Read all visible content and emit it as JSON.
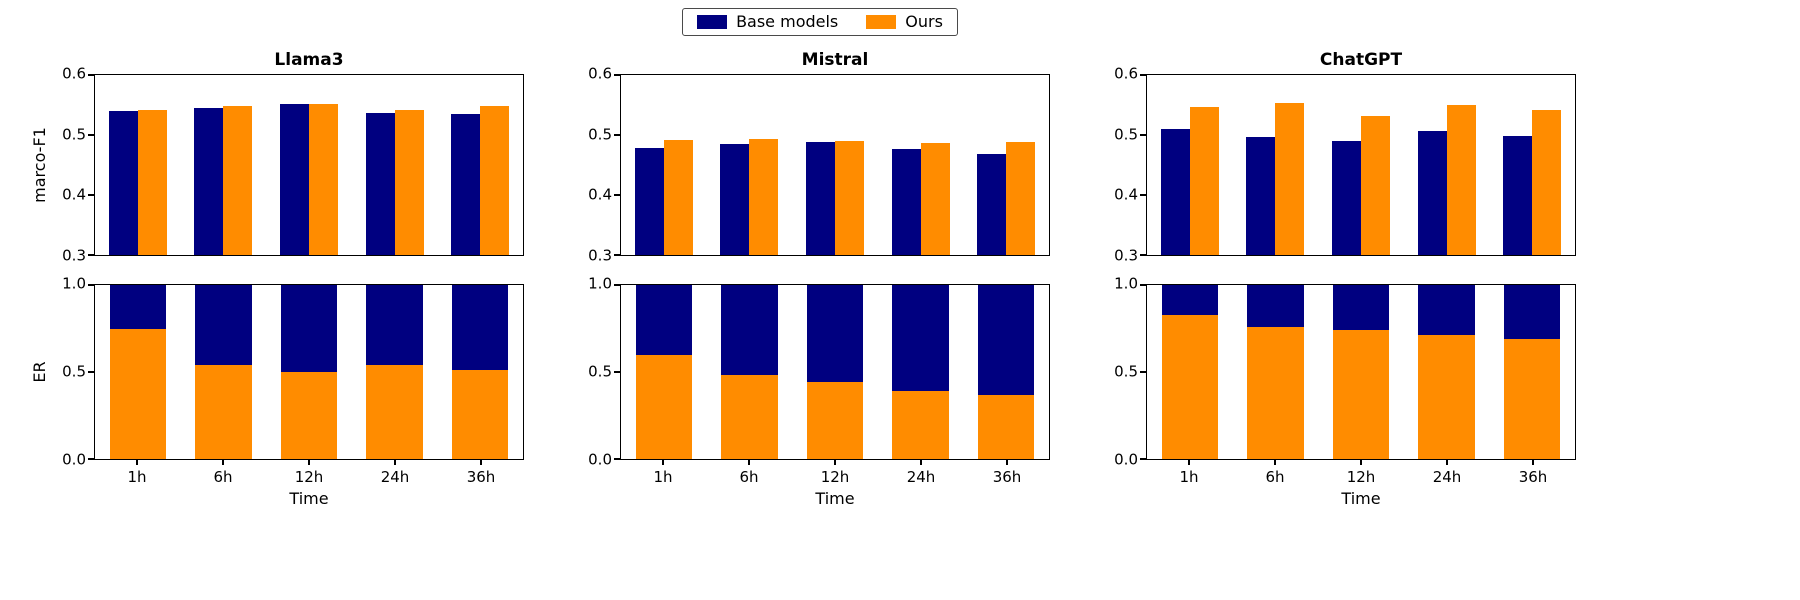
{
  "figure": {
    "background": "#ffffff",
    "legend": {
      "items": [
        {
          "label": "Base models",
          "color": "#000080"
        },
        {
          "label": "Ours",
          "color": "#ff8c00"
        }
      ]
    }
  },
  "chart_data": [
    {
      "type": "bar",
      "title": "Llama3",
      "ylabel": "marco-F1",
      "categories": [
        "1h",
        "6h",
        "12h",
        "24h",
        "36h"
      ],
      "series": [
        {
          "name": "Base models",
          "color": "#000080",
          "values": [
            0.54,
            0.545,
            0.551,
            0.537,
            0.535
          ]
        },
        {
          "name": "Ours",
          "color": "#ff8c00",
          "values": [
            0.541,
            0.549,
            0.552,
            0.542,
            0.549
          ]
        }
      ],
      "ylim": [
        0.3,
        0.6
      ],
      "yticks": [
        {
          "value": 0.3,
          "label": "0.3"
        },
        {
          "value": 0.4,
          "label": "0.4"
        },
        {
          "value": 0.5,
          "label": "0.5"
        },
        {
          "value": 0.6,
          "label": "0.6"
        }
      ],
      "grid": false,
      "legend_position": "top-center-figure"
    },
    {
      "type": "bar",
      "title": "Mistral",
      "categories": [
        "1h",
        "6h",
        "12h",
        "24h",
        "36h"
      ],
      "series": [
        {
          "name": "Base models",
          "color": "#000080",
          "values": [
            0.479,
            0.485,
            0.488,
            0.476,
            0.469
          ]
        },
        {
          "name": "Ours",
          "color": "#ff8c00",
          "values": [
            0.492,
            0.493,
            0.49,
            0.487,
            0.488
          ]
        }
      ],
      "ylim": [
        0.3,
        0.6
      ],
      "yticks": [
        {
          "value": 0.3,
          "label": "0.3"
        },
        {
          "value": 0.4,
          "label": "0.4"
        },
        {
          "value": 0.5,
          "label": "0.5"
        },
        {
          "value": 0.6,
          "label": "0.6"
        }
      ],
      "grid": false
    },
    {
      "type": "bar",
      "title": "ChatGPT",
      "categories": [
        "1h",
        "6h",
        "12h",
        "24h",
        "36h"
      ],
      "series": [
        {
          "name": "Base models",
          "color": "#000080",
          "values": [
            0.51,
            0.496,
            0.49,
            0.507,
            0.499
          ]
        },
        {
          "name": "Ours",
          "color": "#ff8c00",
          "values": [
            0.546,
            0.553,
            0.532,
            0.55,
            0.541
          ]
        }
      ],
      "ylim": [
        0.3,
        0.6
      ],
      "yticks": [
        {
          "value": 0.3,
          "label": "0.3"
        },
        {
          "value": 0.4,
          "label": "0.4"
        },
        {
          "value": 0.5,
          "label": "0.5"
        },
        {
          "value": 0.6,
          "label": "0.6"
        }
      ],
      "grid": false
    },
    {
      "type": "stacked-bar",
      "ylabel": "ER",
      "xlabel": "Time",
      "categories": [
        "1h",
        "6h",
        "12h",
        "24h",
        "36h"
      ],
      "series": [
        {
          "name": "Ours",
          "color": "#ff8c00",
          "values": [
            0.75,
            0.54,
            0.5,
            0.54,
            0.51
          ]
        },
        {
          "name": "Base models",
          "color": "#000080",
          "values": [
            0.25,
            0.46,
            0.5,
            0.46,
            0.49
          ]
        }
      ],
      "ylim": [
        0.0,
        1.0
      ],
      "yticks": [
        {
          "value": 0.0,
          "label": "0.0"
        },
        {
          "value": 0.5,
          "label": "0.5"
        },
        {
          "value": 1.0,
          "label": "1.0"
        }
      ],
      "grid": false
    },
    {
      "type": "stacked-bar",
      "xlabel": "Time",
      "categories": [
        "1h",
        "6h",
        "12h",
        "24h",
        "36h"
      ],
      "series": [
        {
          "name": "Ours",
          "color": "#ff8c00",
          "values": [
            0.6,
            0.48,
            0.44,
            0.39,
            0.37
          ]
        },
        {
          "name": "Base models",
          "color": "#000080",
          "values": [
            0.4,
            0.52,
            0.56,
            0.61,
            0.63
          ]
        }
      ],
      "ylim": [
        0.0,
        1.0
      ],
      "yticks": [
        {
          "value": 0.0,
          "label": "0.0"
        },
        {
          "value": 0.5,
          "label": "0.5"
        },
        {
          "value": 1.0,
          "label": "1.0"
        }
      ],
      "grid": false
    },
    {
      "type": "stacked-bar",
      "xlabel": "Time",
      "categories": [
        "1h",
        "6h",
        "12h",
        "24h",
        "36h"
      ],
      "series": [
        {
          "name": "Ours",
          "color": "#ff8c00",
          "values": [
            0.83,
            0.76,
            0.74,
            0.71,
            0.69
          ]
        },
        {
          "name": "Base models",
          "color": "#000080",
          "values": [
            0.17,
            0.24,
            0.26,
            0.29,
            0.31
          ]
        }
      ],
      "ylim": [
        0.0,
        1.0
      ],
      "yticks": [
        {
          "value": 0.0,
          "label": "0.0"
        },
        {
          "value": 0.5,
          "label": "0.5"
        },
        {
          "value": 1.0,
          "label": "1.0"
        }
      ],
      "grid": false
    }
  ]
}
